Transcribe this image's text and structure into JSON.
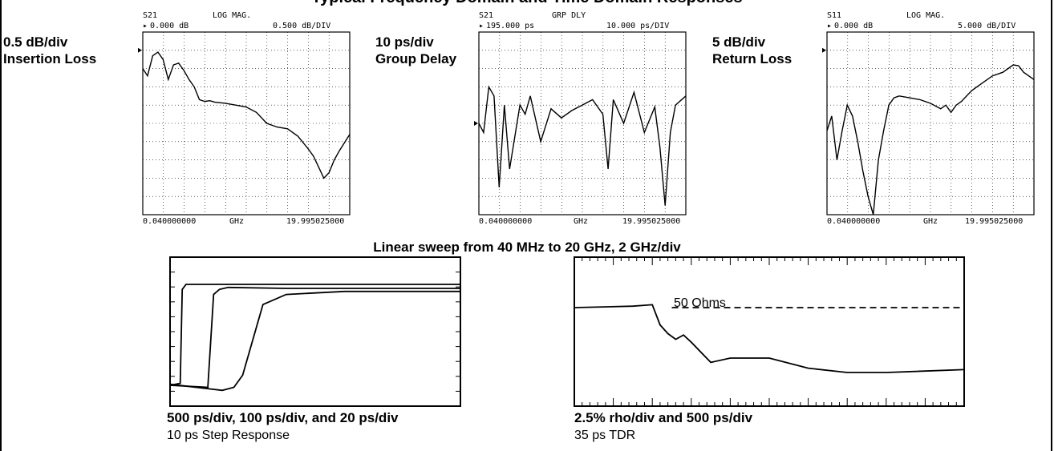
{
  "title": "Typical Frequency Domain and Time Domain Responses",
  "sweep_label": "Linear sweep from 40 MHz to 20 GHz, 2 GHz/div",
  "vna_plots": [
    {
      "side_label_1": "0.5 dB/div",
      "side_label_2": "Insertion Loss",
      "param": "S21",
      "format": "LOG MAG.",
      "ref_value": "0.000 dB",
      "scale": "0.500 dB/DIV",
      "x_start": "0.040000000",
      "x_unit": "GHz",
      "x_stop": "19.995025000"
    },
    {
      "side_label_1": "10 ps/div",
      "side_label_2": "Group Delay",
      "param": "S21",
      "format": "GRP DLY",
      "ref_value": "195.000 ps",
      "scale": "10.000 ps/DIV",
      "x_start": "0.040000000",
      "x_unit": "GHz",
      "x_stop": "19.995025000"
    },
    {
      "side_label_1": "5 dB/div",
      "side_label_2": "Return Loss",
      "param": "S11",
      "format": "LOG MAG.",
      "ref_value": "0.000 dB",
      "scale": "5.000 dB/DIV",
      "x_start": "0.040000000",
      "x_unit": "GHz",
      "x_stop": "19.995025000"
    }
  ],
  "step_plot": {
    "caption_bold": "500 ps/div, 100 ps/div, and 20 ps/div",
    "caption": "10 ps Step Response"
  },
  "tdr_plot": {
    "annotation": "50 Ohms",
    "caption_bold": "2.5% rho/div and 500 ps/div",
    "caption": "35 ps TDR"
  },
  "chart_data": [
    {
      "type": "line",
      "title": "S21 LOG MAG.",
      "x_unit": "GHz",
      "xlim": [
        0.04,
        19.995025
      ],
      "y_unit": "dB",
      "y_scale_per_div": 0.5,
      "y_ref": 0.0,
      "x": [
        0.04,
        0.5,
        1,
        1.5,
        2,
        2.5,
        3,
        3.5,
        4,
        4.5,
        5,
        5.5,
        6,
        6.5,
        7,
        8,
        9,
        10,
        11,
        12,
        13,
        14,
        15,
        16,
        16.5,
        17,
        17.5,
        18,
        18.5,
        19,
        20
      ],
      "y": [
        -0.5,
        -0.7,
        -0.15,
        -0.05,
        -0.25,
        -0.8,
        -0.4,
        -0.35,
        -0.55,
        -0.8,
        -1.0,
        -1.35,
        -1.4,
        -1.38,
        -1.42,
        -1.45,
        -1.5,
        -1.55,
        -1.7,
        -2.0,
        -2.1,
        -2.15,
        -2.35,
        -2.7,
        -2.9,
        -3.2,
        -3.5,
        -3.35,
        -3.0,
        -2.75,
        -2.3
      ]
    },
    {
      "type": "line",
      "title": "S21 GRP DLY",
      "x_unit": "GHz",
      "xlim": [
        0.04,
        19.995025
      ],
      "y_unit": "ps",
      "y_scale_per_div": 10,
      "y_ref": 195.0,
      "x": [
        0.04,
        0.5,
        1,
        1.5,
        2,
        2.5,
        3,
        4,
        4.5,
        5,
        6,
        7,
        8,
        9,
        10,
        11,
        12,
        12.5,
        13,
        14,
        15,
        16,
        17,
        17.5,
        18,
        18.5,
        19,
        20
      ],
      "y": [
        195,
        190,
        215,
        210,
        160,
        205,
        170,
        205,
        200,
        210,
        185,
        203,
        198,
        202,
        205,
        208,
        200,
        170,
        208,
        195,
        212,
        190,
        204,
        182,
        150,
        190,
        205,
        210
      ]
    },
    {
      "type": "line",
      "title": "S11 LOG MAG.",
      "x_unit": "GHz",
      "xlim": [
        0.04,
        19.995025
      ],
      "y_unit": "dB",
      "y_scale_per_div": 5,
      "y_ref": 0.0,
      "x": [
        0.04,
        0.5,
        1,
        1.5,
        2,
        2.5,
        3,
        3.5,
        4,
        4.5,
        5,
        5.5,
        6,
        6.5,
        7,
        8,
        9,
        10,
        11,
        11.5,
        12,
        12.5,
        13,
        14,
        15,
        16,
        17,
        18,
        18.5,
        19,
        20
      ],
      "y": [
        -22,
        -18,
        -30,
        -22,
        -15,
        -18,
        -25,
        -33,
        -40,
        -47,
        -30,
        -22,
        -15,
        -13,
        -12.5,
        -13,
        -13.5,
        -14.5,
        -16,
        -15,
        -17,
        -15,
        -14,
        -11,
        -9,
        -7,
        -6,
        -4,
        -4.2,
        -6,
        -8
      ]
    },
    {
      "type": "line",
      "title": "10 ps Step Response",
      "series": [
        {
          "x": [
            0,
            0.35,
            0.42,
            0.55,
            1.0,
            4.0,
            10.0
          ],
          "y": [
            0,
            0.02,
            0.95,
            1.0,
            1.0,
            1.0,
            1.0
          ]
        },
        {
          "x": [
            0,
            1.3,
            1.5,
            1.7,
            2.0,
            4.0,
            10.0
          ],
          "y": [
            0,
            -0.02,
            0.9,
            0.95,
            0.97,
            0.96,
            0.96
          ]
        },
        {
          "x": [
            0,
            1.8,
            2.2,
            2.5,
            3.2,
            4.0,
            6.0,
            10.0
          ],
          "y": [
            0.01,
            -0.05,
            -0.02,
            0.1,
            0.8,
            0.9,
            0.93,
            0.93
          ]
        }
      ]
    },
    {
      "type": "line",
      "title": "35 ps TDR",
      "series": [
        {
          "x": [
            0,
            1.5,
            2.0,
            2.2,
            2.4,
            2.6,
            2.8,
            3.0,
            3.5,
            4.0,
            5.0,
            6.0,
            7.0,
            8.0,
            10.0
          ],
          "y": [
            0,
            0.05,
            0.1,
            -0.6,
            -0.9,
            -1.1,
            -0.95,
            -1.2,
            -1.9,
            -1.75,
            -1.75,
            -2.1,
            -2.25,
            -2.25,
            -2.15
          ]
        },
        {
          "x": [
            2.5,
            10.0
          ],
          "y": [
            0,
            0
          ]
        }
      ]
    }
  ]
}
